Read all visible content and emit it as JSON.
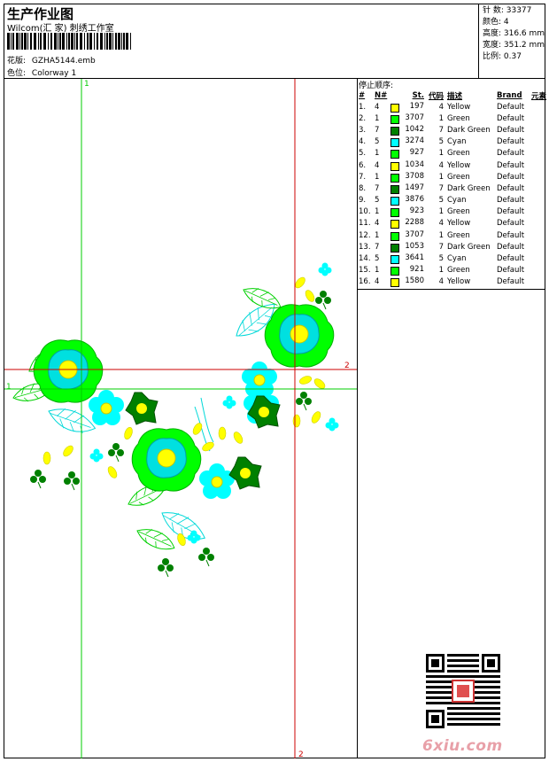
{
  "header": {
    "title": "生产作业图",
    "subtitle": "Wilcom(汇 家) 刺绣工作室",
    "design_label": "花版:",
    "design_value": "GZHA5144.emb",
    "color_label": "色位:",
    "color_value": "Colorway 1"
  },
  "stats": {
    "stitches": "针 数: 33377",
    "colors": "颜色: 4",
    "height": "高度: 316.6 mm",
    "width": "宽度: 351.2 mm",
    "scale": "比例: 0.37"
  },
  "stops": {
    "heading": "停止顺序:",
    "columns": [
      "#",
      "N#",
      "St.",
      "代码",
      "描述",
      "Brand",
      "元素"
    ],
    "rows": [
      {
        "no": "1.",
        "n": "4",
        "st": "197",
        "code": "4",
        "desc": "Yellow",
        "brand": "Default",
        "color": "#ffff00"
      },
      {
        "no": "2.",
        "n": "1",
        "st": "3707",
        "code": "1",
        "desc": "Green",
        "brand": "Default",
        "color": "#00ff00"
      },
      {
        "no": "3.",
        "n": "7",
        "st": "1042",
        "code": "7",
        "desc": "Dark Green",
        "brand": "Default",
        "color": "#008000"
      },
      {
        "no": "4.",
        "n": "5",
        "st": "3274",
        "code": "5",
        "desc": "Cyan",
        "brand": "Default",
        "color": "#00ffff"
      },
      {
        "no": "5.",
        "n": "1",
        "st": "927",
        "code": "1",
        "desc": "Green",
        "brand": "Default",
        "color": "#00ff00"
      },
      {
        "no": "6.",
        "n": "4",
        "st": "1034",
        "code": "4",
        "desc": "Yellow",
        "brand": "Default",
        "color": "#ffff00"
      },
      {
        "no": "7.",
        "n": "1",
        "st": "3708",
        "code": "1",
        "desc": "Green",
        "brand": "Default",
        "color": "#00ff00"
      },
      {
        "no": "8.",
        "n": "7",
        "st": "1497",
        "code": "7",
        "desc": "Dark Green",
        "brand": "Default",
        "color": "#008000"
      },
      {
        "no": "9.",
        "n": "5",
        "st": "3876",
        "code": "5",
        "desc": "Cyan",
        "brand": "Default",
        "color": "#00ffff"
      },
      {
        "no": "10.",
        "n": "1",
        "st": "923",
        "code": "1",
        "desc": "Green",
        "brand": "Default",
        "color": "#00ff00"
      },
      {
        "no": "11.",
        "n": "4",
        "st": "2288",
        "code": "4",
        "desc": "Yellow",
        "brand": "Default",
        "color": "#ffff00"
      },
      {
        "no": "12.",
        "n": "1",
        "st": "3707",
        "code": "1",
        "desc": "Green",
        "brand": "Default",
        "color": "#00ff00"
      },
      {
        "no": "13.",
        "n": "7",
        "st": "1053",
        "code": "7",
        "desc": "Dark Green",
        "brand": "Default",
        "color": "#008000"
      },
      {
        "no": "14.",
        "n": "5",
        "st": "3641",
        "code": "5",
        "desc": "Cyan",
        "brand": "Default",
        "color": "#00ffff"
      },
      {
        "no": "15.",
        "n": "1",
        "st": "921",
        "code": "1",
        "desc": "Green",
        "brand": "Default",
        "color": "#00ff00"
      },
      {
        "no": "16.",
        "n": "4",
        "st": "1580",
        "code": "4",
        "desc": "Yellow",
        "brand": "Default",
        "color": "#ffff00"
      }
    ]
  },
  "guides": {
    "green_top": "1",
    "green_left": "1",
    "red_right": "2",
    "red_bottom": "2",
    "green_color": "#00cc00",
    "red_color": "#cc0000"
  },
  "embroidery_colors": {
    "yellow": "#ffff00",
    "green": "#00ff00",
    "dark_green": "#008000",
    "cyan": "#00ffff"
  },
  "watermark": "6xiu.com"
}
